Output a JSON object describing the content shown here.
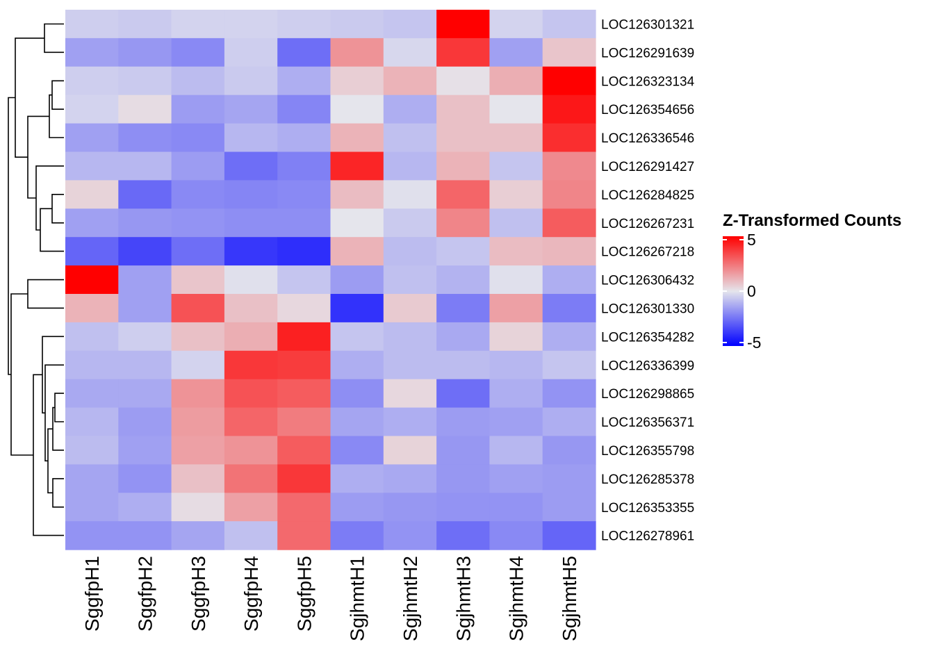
{
  "chart_data": {
    "type": "heatmap",
    "columns": [
      "SggfpH1",
      "SggfpH2",
      "SggfpH3",
      "SggfpH4",
      "SggfpH5",
      "SgjhmtH1",
      "SgjhmtH2",
      "SgjhmtH3",
      "SgjhmtH4",
      "SgjhmtH5"
    ],
    "rows": [
      "LOC126301321",
      "LOC126291639",
      "LOC126323134",
      "LOC126354656",
      "LOC126336546",
      "LOC126291427",
      "LOC126284825",
      "LOC126267231",
      "LOC126267218",
      "LOC126306432",
      "LOC126301330",
      "LOC126354282",
      "LOC126336399",
      "LOC126298865",
      "LOC126356371",
      "LOC126355798",
      "LOC126285378",
      "LOC126353355",
      "LOC126278961"
    ],
    "values": [
      [
        -0.5,
        -0.6,
        -0.4,
        -0.4,
        -0.5,
        -0.6,
        -0.7,
        5.0,
        -0.4,
        -0.7
      ],
      [
        -1.5,
        -1.7,
        -2.0,
        -0.5,
        -2.6,
        1.8,
        -0.3,
        3.8,
        -1.5,
        0.7
      ],
      [
        -0.5,
        -0.6,
        -0.9,
        -0.6,
        -1.2,
        0.5,
        1.1,
        0.1,
        1.2,
        5.0
      ],
      [
        -0.4,
        0.2,
        -1.6,
        -1.4,
        -2.1,
        0.0,
        -1.2,
        0.8,
        0.0,
        4.5
      ],
      [
        -1.5,
        -1.9,
        -2.0,
        -1.0,
        -1.2,
        1.1,
        -0.8,
        0.8,
        0.8,
        4.0
      ],
      [
        -1.0,
        -1.0,
        -1.6,
        -2.6,
        -2.2,
        4.2,
        -1.0,
        1.1,
        -0.7,
        2.0
      ],
      [
        0.4,
        -2.7,
        -2.0,
        -2.1,
        -2.0,
        0.9,
        -0.1,
        2.8,
        0.5,
        2.1
      ],
      [
        -1.5,
        -1.7,
        -1.8,
        -1.9,
        -1.9,
        0.0,
        -0.6,
        2.1,
        -0.8,
        3.0
      ],
      [
        -2.8,
        -3.5,
        -2.6,
        -3.8,
        -4.0,
        1.1,
        -0.9,
        -0.7,
        0.9,
        1.0
      ],
      [
        5.0,
        -1.5,
        0.7,
        -0.1,
        -0.7,
        -1.6,
        -0.8,
        -1.1,
        -0.1,
        -1.2
      ],
      [
        1.1,
        -1.5,
        3.2,
        0.8,
        0.3,
        -3.9,
        0.6,
        -2.3,
        1.5,
        -2.3
      ],
      [
        -0.8,
        -0.5,
        0.8,
        1.2,
        4.3,
        -0.7,
        -0.9,
        -1.3,
        0.4,
        -1.2
      ],
      [
        -1.0,
        -1.0,
        -0.4,
        3.8,
        3.7,
        -1.2,
        -0.9,
        -0.9,
        -1.0,
        -0.7
      ],
      [
        -1.3,
        -1.3,
        1.8,
        3.2,
        3.0,
        -1.9,
        0.3,
        -2.6,
        -1.2,
        -1.8
      ],
      [
        -1.0,
        -1.6,
        1.6,
        2.8,
        2.3,
        -1.4,
        -1.2,
        -1.6,
        -1.5,
        -1.2
      ],
      [
        -0.9,
        -1.5,
        1.5,
        1.8,
        3.0,
        -2.0,
        0.4,
        -1.7,
        -1.0,
        -1.7
      ],
      [
        -1.4,
        -1.8,
        0.8,
        2.5,
        3.8,
        -1.2,
        -1.3,
        -1.7,
        -1.5,
        -1.6
      ],
      [
        -1.4,
        -1.2,
        0.2,
        1.5,
        2.7,
        -1.6,
        -1.7,
        -1.8,
        -1.8,
        -1.6
      ],
      [
        -1.8,
        -1.8,
        -1.4,
        -0.8,
        2.7,
        -2.3,
        -1.8,
        -2.6,
        -2.0,
        -2.8
      ]
    ],
    "legend": {
      "title": "Z-Transformed Counts",
      "ticks": [
        5,
        0,
        -5
      ],
      "tick_labels": [
        "5",
        "0",
        "-5"
      ],
      "range": [
        -5,
        5
      ]
    },
    "colors": {
      "low": "#0000ff",
      "mid": "#e5e5ec",
      "high": "#ff0000"
    },
    "dendrogram": "row",
    "row_label_position": "right",
    "column_label_position": "bottom"
  }
}
